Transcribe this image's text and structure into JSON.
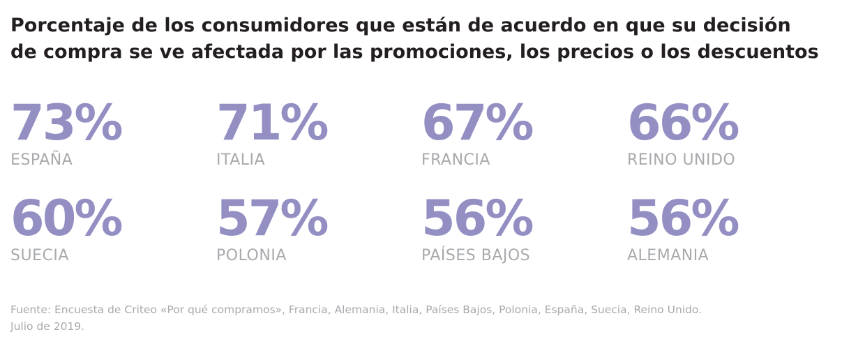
{
  "title_lines": [
    "Porcentaje de los consumidores que están de acuerdo en que su decisión",
    "de compra se ve afectada por las promociones, los precios o los descuentos"
  ],
  "colors": {
    "value": "#938fc3",
    "label": "#a7a9ac",
    "title": "#231f20",
    "source": "#a7a9ac"
  },
  "chart_data": {
    "type": "table",
    "title": "Porcentaje de los consumidores que están de acuerdo en que su decisión de compra se ve afectada por las promociones, los precios o los descuentos",
    "unit": "%",
    "categories": [
      "ESPAÑA",
      "ITALIA",
      "FRANCIA",
      "REINO UNIDO",
      "SUECIA",
      "POLONIA",
      "PAÍSES BAJOS",
      "ALEMANIA"
    ],
    "values": [
      73,
      71,
      67,
      66,
      60,
      57,
      56,
      56
    ]
  },
  "source_lines": [
    "Fuente: Encuesta de Criteo «Por qué compramos», Francia, Alemania, Italia, Países Bajos, Polonia, España, Suecia, Reino Unido.",
    "Julio de 2019."
  ]
}
